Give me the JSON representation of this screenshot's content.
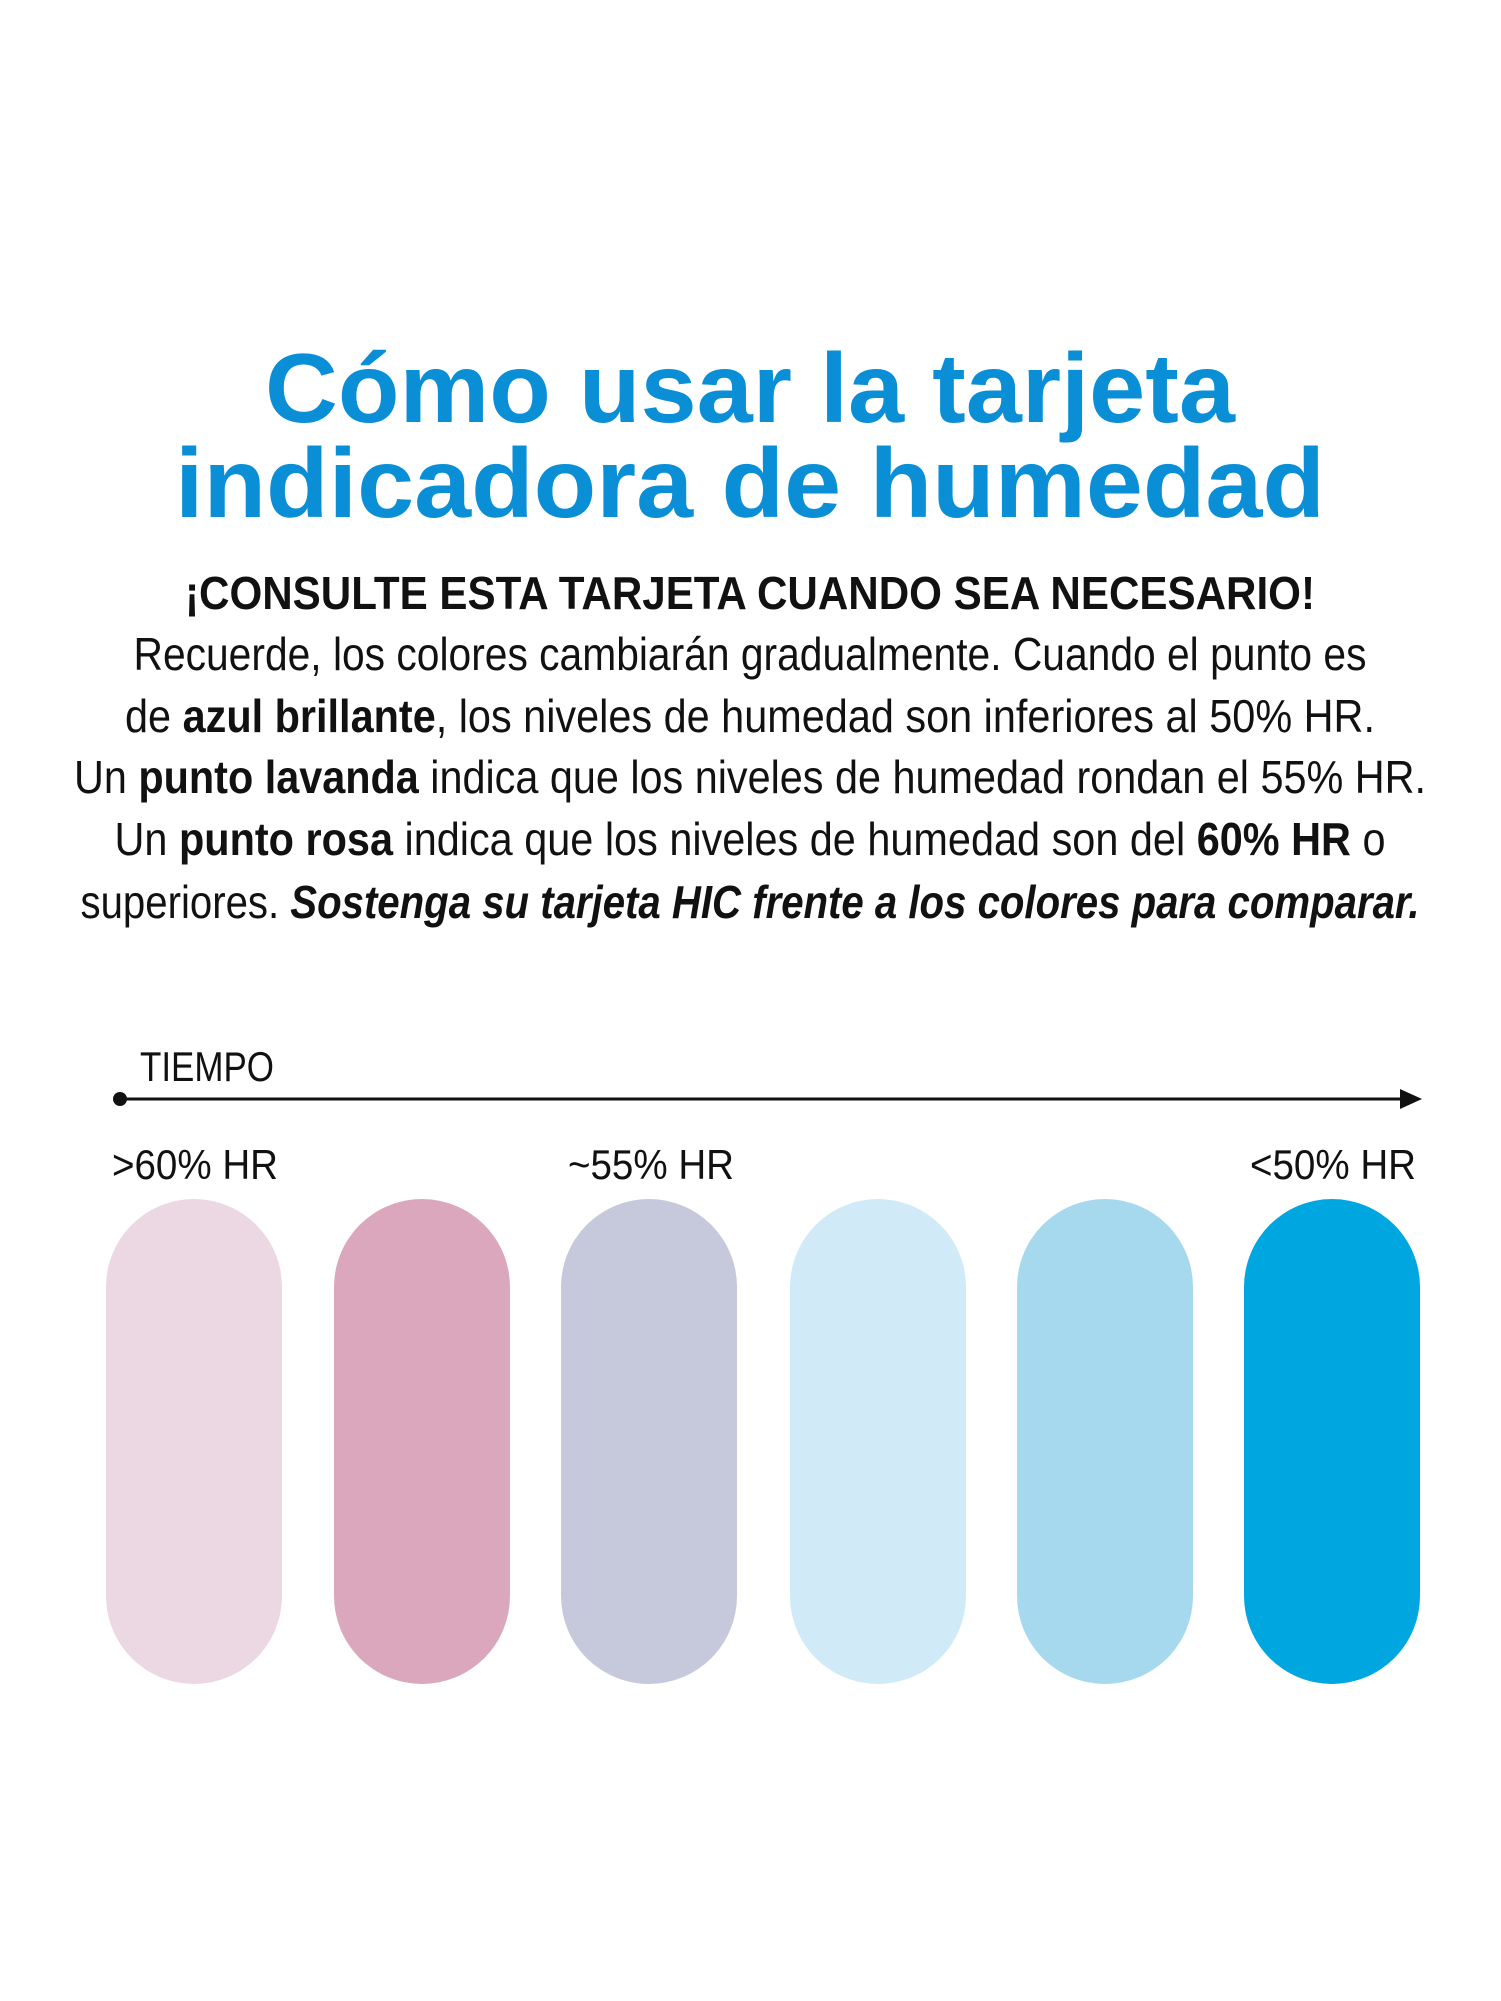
{
  "title": {
    "lines": [
      "Cómo usar la tarjeta",
      "indicadora de humedad"
    ]
  },
  "subtitle": "¡CONSULTE ESTA TARJETA CUANDO SEA NECESARIO!",
  "paragraph": {
    "lines": [
      [
        {
          "text": "Recuerde, los colores cambiarán gradualmente. Cuando el punto es"
        }
      ],
      [
        {
          "text": "de "
        },
        {
          "text": "azul brillante",
          "style": "bold"
        },
        {
          "text": ", los niveles de humedad son inferiores al 50% HR."
        }
      ],
      [
        {
          "text": "Un "
        },
        {
          "text": "punto lavanda",
          "style": "bold"
        },
        {
          "text": " indica que los niveles de humedad rondan el 55% HR."
        }
      ],
      [
        {
          "text": "Un "
        },
        {
          "text": "punto rosa",
          "style": "bold"
        },
        {
          "text": " indica que los niveles de humedad son del "
        },
        {
          "text": "60% HR",
          "style": "bold"
        },
        {
          "text": " o"
        }
      ],
      [
        {
          "text": "superiores. "
        },
        {
          "text": "Sostenga su tarjeta HIC frente a los colores para comparar.",
          "style": "bold-italic"
        }
      ]
    ]
  },
  "timeline": {
    "label": "TIEMPO",
    "markers": [
      ">60% HR",
      "~55% HR",
      "<50% HR"
    ]
  }
}
